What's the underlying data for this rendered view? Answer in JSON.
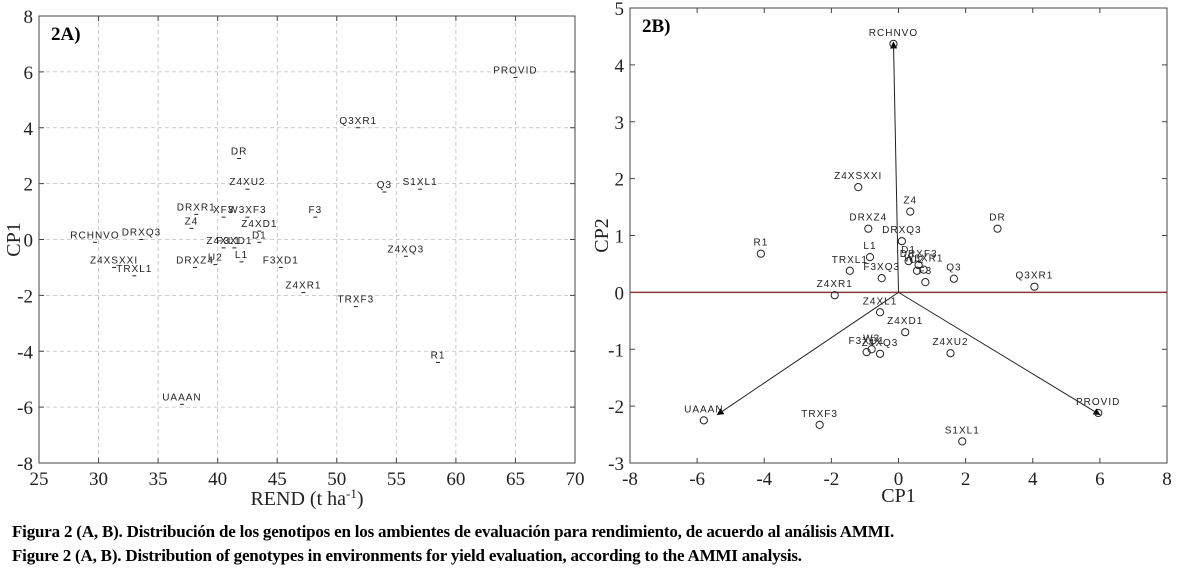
{
  "chart_data": [
    {
      "type": "scatter",
      "panel_label": "2A)",
      "xlabel": "REND (t ha",
      "xlabel_sup": "-1",
      "xlabel_end": ")",
      "ylabel": "CP1",
      "xlim": [
        25,
        70
      ],
      "ylim": [
        -8,
        8
      ],
      "xticks": [
        25,
        30,
        35,
        40,
        45,
        50,
        55,
        60,
        65,
        70
      ],
      "yticks": [
        -8,
        -6,
        -4,
        -2,
        0,
        2,
        4,
        6,
        8
      ],
      "grid": true,
      "points": [
        {
          "label": "PROVID",
          "x": 65.0,
          "y": 5.8
        },
        {
          "label": "Q3XR1",
          "x": 51.8,
          "y": 4.0
        },
        {
          "label": "DR",
          "x": 41.8,
          "y": 2.9
        },
        {
          "label": "S1XL1",
          "x": 57.0,
          "y": 1.8
        },
        {
          "label": "Q3",
          "x": 54.0,
          "y": 1.7
        },
        {
          "label": "Z4XU2",
          "x": 42.5,
          "y": 1.8
        },
        {
          "label": "F3",
          "x": 48.2,
          "y": 0.8
        },
        {
          "label": "DRXR1",
          "x": 38.2,
          "y": 0.9
        },
        {
          "label": "XF3",
          "x": 40.5,
          "y": 0.8
        },
        {
          "label": "W3XF3",
          "x": 42.5,
          "y": 0.8
        },
        {
          "label": "Z4",
          "x": 37.8,
          "y": 0.4
        },
        {
          "label": "Z4XD1",
          "x": 43.5,
          "y": 0.3
        },
        {
          "label": "D1",
          "x": 43.5,
          "y": -0.1
        },
        {
          "label": "RCHNVO",
          "x": 29.7,
          "y": -0.1
        },
        {
          "label": "DRXQ3",
          "x": 33.6,
          "y": 0.0
        },
        {
          "label": "Z4XQ3",
          "x": 55.8,
          "y": -0.6
        },
        {
          "label": "Z4XL1",
          "x": 40.5,
          "y": -0.3
        },
        {
          "label": "F3XD1",
          "x": 41.4,
          "y": -0.3
        },
        {
          "label": "L1",
          "x": 42.0,
          "y": -0.8
        },
        {
          "label": "F3XD1",
          "x": 45.3,
          "y": -1.0
        },
        {
          "label": "DRXZ4",
          "x": 38.1,
          "y": -1.0
        },
        {
          "label": "U2",
          "x": 39.8,
          "y": -0.9
        },
        {
          "label": "Z4XSXXI",
          "x": 31.3,
          "y": -1.0
        },
        {
          "label": "TRXL1",
          "x": 33.0,
          "y": -1.3
        },
        {
          "label": "Z4XR1",
          "x": 47.2,
          "y": -1.9
        },
        {
          "label": "TRXF3",
          "x": 51.6,
          "y": -2.4
        },
        {
          "label": "R1",
          "x": 58.5,
          "y": -4.4
        },
        {
          "label": "UAAAN",
          "x": 37.0,
          "y": -5.9
        }
      ]
    },
    {
      "type": "scatter",
      "panel_label": "2B)",
      "xlabel": "CP1",
      "ylabel": "CP2",
      "xlim": [
        -8,
        8
      ],
      "ylim": [
        -3,
        5
      ],
      "xticks": [
        -8,
        -6,
        -4,
        -2,
        0,
        2,
        4,
        6,
        8
      ],
      "yticks": [
        -3,
        -2,
        -1,
        0,
        1,
        2,
        3,
        4,
        5
      ],
      "grid": false,
      "reference_line": {
        "y": 0,
        "color": "#8b3a3a"
      },
      "environment_vectors": [
        {
          "label": "RCHNVO",
          "x": -0.15,
          "y": 4.4
        },
        {
          "label": "UAAAN",
          "x": -5.4,
          "y": -2.15
        },
        {
          "label": "PROVID",
          "x": 6.0,
          "y": -2.15
        }
      ],
      "points": [
        {
          "label": "RCHNVO",
          "x": -0.15,
          "y": 4.37
        },
        {
          "label": "R1",
          "x": -4.1,
          "y": 0.68
        },
        {
          "label": "Z4XSXXI",
          "x": -1.2,
          "y": 1.85
        },
        {
          "label": "Z4",
          "x": 0.35,
          "y": 1.42
        },
        {
          "label": "DRXZ4",
          "x": -0.9,
          "y": 1.12
        },
        {
          "label": "DRXQ3",
          "x": 0.1,
          "y": 0.9
        },
        {
          "label": "DR",
          "x": 2.95,
          "y": 1.12
        },
        {
          "label": "L1",
          "x": -0.85,
          "y": 0.62
        },
        {
          "label": "TRXL1",
          "x": -1.45,
          "y": 0.38
        },
        {
          "label": "F3XQ3",
          "x": -0.5,
          "y": 0.25
        },
        {
          "label": "D1",
          "x": 0.3,
          "y": 0.55
        },
        {
          "label": "DRXF3",
          "x": 0.6,
          "y": 0.48
        },
        {
          "label": "W3XR1",
          "x": 0.75,
          "y": 0.4
        },
        {
          "label": "U2",
          "x": 0.55,
          "y": 0.38
        },
        {
          "label": "F3",
          "x": 0.8,
          "y": 0.18
        },
        {
          "label": "Q3",
          "x": 1.65,
          "y": 0.24
        },
        {
          "label": "Q3XR1",
          "x": 4.05,
          "y": 0.1
        },
        {
          "label": "Z4XR1",
          "x": -1.9,
          "y": -0.05
        },
        {
          "label": "Z4XL1",
          "x": -0.55,
          "y": -0.35
        },
        {
          "label": "Z4XD1",
          "x": 0.2,
          "y": -0.7
        },
        {
          "label": "F3XD1",
          "x": -0.95,
          "y": -1.05
        },
        {
          "label": "W3",
          "x": -0.8,
          "y": -1.0
        },
        {
          "label": "Z4XQ3",
          "x": -0.55,
          "y": -1.08
        },
        {
          "label": "Z4XU2",
          "x": 1.55,
          "y": -1.07
        },
        {
          "label": "TRXF3",
          "x": -2.35,
          "y": -2.33
        },
        {
          "label": "UAAAN",
          "x": -5.8,
          "y": -2.25
        },
        {
          "label": "PROVID",
          "x": 5.95,
          "y": -2.12
        },
        {
          "label": "S1XL1",
          "x": 1.9,
          "y": -2.62
        }
      ]
    }
  ],
  "caption": {
    "spanish": "Figura 2 (A, B). Distribución de los genotipos en los ambientes de evaluación para rendimiento, de acuerdo al análisis AMMI.",
    "english": "Figure 2 (A, B). Distribution of genotypes in environments for yield evaluation, according to the AMMI analysis."
  }
}
